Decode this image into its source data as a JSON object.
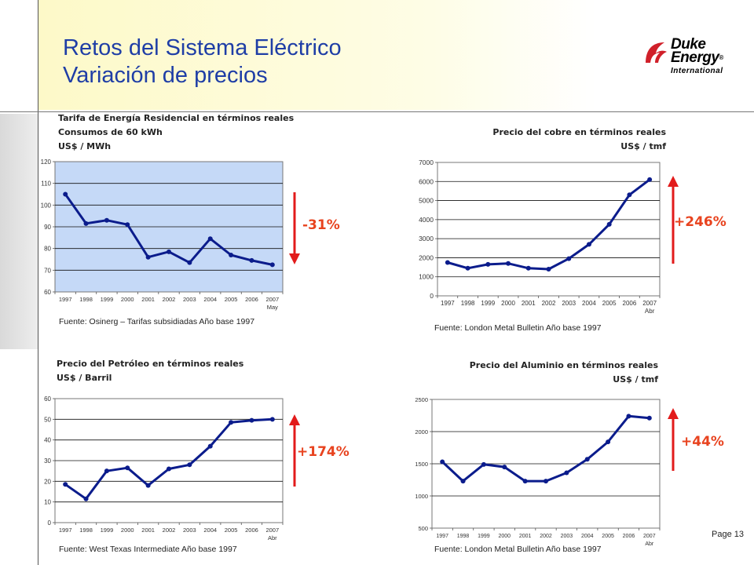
{
  "slide": {
    "title_line1": "Retos del Sistema Eléctrico",
    "title_line2": "Variación de precios",
    "page": "Page 13",
    "logo": {
      "line1": "Duke",
      "line2": "Energy",
      "registered": "®",
      "line3": "International"
    }
  },
  "colors": {
    "title": "#1f3ea6",
    "line": "#0b1c8c",
    "arrow": "#e21b1b",
    "pct": "#e8431f",
    "plot_residential": "#c5d9f7"
  },
  "panels": {
    "residential": {
      "title_lines": [
        "Tarifa de Energía Residencial en términos reales",
        "Consumos de 60 kWh",
        "US$ / MWh"
      ],
      "source": "Fuente: Osinerg – Tarifas subsidiadas Año base 1997",
      "change": "-31%",
      "direction": "down"
    },
    "copper": {
      "title_lines": [
        "Precio del cobre en términos reales",
        "US$ / tmf"
      ],
      "source": "Fuente: London Metal Bulletin  Año base 1997",
      "change": "+246%",
      "direction": "up"
    },
    "oil": {
      "title_lines": [
        "Precio del Petróleo en términos reales",
        "US$ / Barril"
      ],
      "source": "Fuente: West Texas Intermediate  Año base 1997",
      "change": "+174%",
      "direction": "up"
    },
    "aluminum": {
      "title_lines": [
        "Precio del Aluminio en términos reales",
        "US$ / tmf"
      ],
      "source": "Fuente: London Metal Bulletin  Año base 1997",
      "change": "+44%",
      "direction": "up"
    }
  },
  "chart_data": [
    {
      "type": "line",
      "title": "Tarifa de Energía Residencial en términos reales",
      "subtitle": "Consumos de 60 kWh",
      "ylabel": "US$ / MWh",
      "categories": [
        "1997",
        "1998",
        "1999",
        "2000",
        "2001",
        "2002",
        "2003",
        "2004",
        "2005",
        "2006",
        "2007"
      ],
      "last_category_sub": "May",
      "values": [
        105,
        91.5,
        93,
        91,
        76,
        78.5,
        73.5,
        84.5,
        77,
        74.5,
        72.5
      ],
      "ylim": [
        60,
        120
      ],
      "yticks": [
        60,
        70,
        80,
        90,
        100,
        110,
        120
      ],
      "grid": true
    },
    {
      "type": "line",
      "title": "Precio del cobre en términos reales",
      "ylabel": "US$ / tmf",
      "categories": [
        "1997",
        "1998",
        "1999",
        "2000",
        "2001",
        "2002",
        "2003",
        "2004",
        "2005",
        "2006",
        "2007"
      ],
      "last_category_sub": "Abr",
      "values": [
        1750,
        1450,
        1650,
        1700,
        1450,
        1400,
        1950,
        2700,
        3750,
        5300,
        6100
      ],
      "ylim": [
        0,
        7000
      ],
      "yticks": [
        0,
        1000,
        2000,
        3000,
        4000,
        5000,
        6000,
        7000
      ],
      "grid": true
    },
    {
      "type": "line",
      "title": "Precio del Petróleo en términos reales",
      "ylabel": "US$ / Barril",
      "categories": [
        "1997",
        "1998",
        "1999",
        "2000",
        "2001",
        "2002",
        "2003",
        "2004",
        "2005",
        "2006",
        "2007"
      ],
      "last_category_sub": "Abr",
      "values": [
        18.5,
        11.5,
        25,
        26.5,
        18,
        26,
        28,
        37,
        48.5,
        49.5,
        50
      ],
      "ylim": [
        0,
        60
      ],
      "yticks": [
        0,
        10,
        20,
        30,
        40,
        50,
        60
      ],
      "grid": true
    },
    {
      "type": "line",
      "title": "Precio del Aluminio en términos reales",
      "ylabel": "US$ / tmf",
      "categories": [
        "1997",
        "1998",
        "1999",
        "2000",
        "2001",
        "2002",
        "2003",
        "2004",
        "2005",
        "2006",
        "2007"
      ],
      "last_category_sub": "Abr",
      "values": [
        1530,
        1230,
        1490,
        1450,
        1230,
        1230,
        1360,
        1570,
        1840,
        2240,
        2210
      ],
      "ylim": [
        500,
        2500
      ],
      "yticks": [
        500,
        1000,
        1500,
        2000,
        2500
      ],
      "grid": true
    }
  ]
}
